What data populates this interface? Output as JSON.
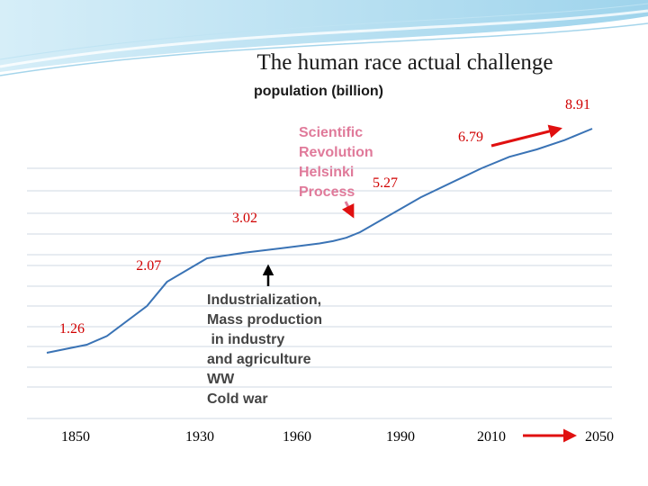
{
  "slide": {
    "title": "The human race actual challenge",
    "annotations": {
      "scientific": "Scientific\nRevolution\nHelsinki\nProcess",
      "industrialization": "Industrialization,\nMass production\n in industry\nand agriculture\nWW\nCold war"
    }
  },
  "chart_data": {
    "type": "line",
    "title": "The human race actual challenge",
    "ylabel": "population (billion)",
    "xlabel": "",
    "ylim": [
      0,
      10
    ],
    "grid": true,
    "color": "#3a73b5",
    "label_color": "#d00000",
    "categories": [
      "1850",
      "1930",
      "1960",
      "1990",
      "2010",
      "2050"
    ],
    "x": [
      1850,
      1870,
      1880,
      1900,
      1910,
      1930,
      1940,
      1950,
      1960,
      1970,
      1980,
      1990,
      2000,
      2010,
      2020,
      2030,
      2040,
      2050
    ],
    "values": [
      1.26,
      1.4,
      1.55,
      2.07,
      2.55,
      3.02,
      3.5,
      3.9,
      4.3,
      4.5,
      4.8,
      5.27,
      6.1,
      6.79,
      7.4,
      7.8,
      8.3,
      8.91
    ],
    "labeled_points": [
      {
        "label": "1.26",
        "x": 1850,
        "y": 1.26
      },
      {
        "label": "2.07",
        "x": 1900,
        "y": 2.07
      },
      {
        "label": "3.02",
        "x": 1930,
        "y": 3.02
      },
      {
        "label": "5.27",
        "x": 1990,
        "y": 5.27
      },
      {
        "label": "6.79",
        "x": 2010,
        "y": 6.79
      },
      {
        "label": "8.91",
        "x": 2050,
        "y": 8.91
      }
    ]
  }
}
